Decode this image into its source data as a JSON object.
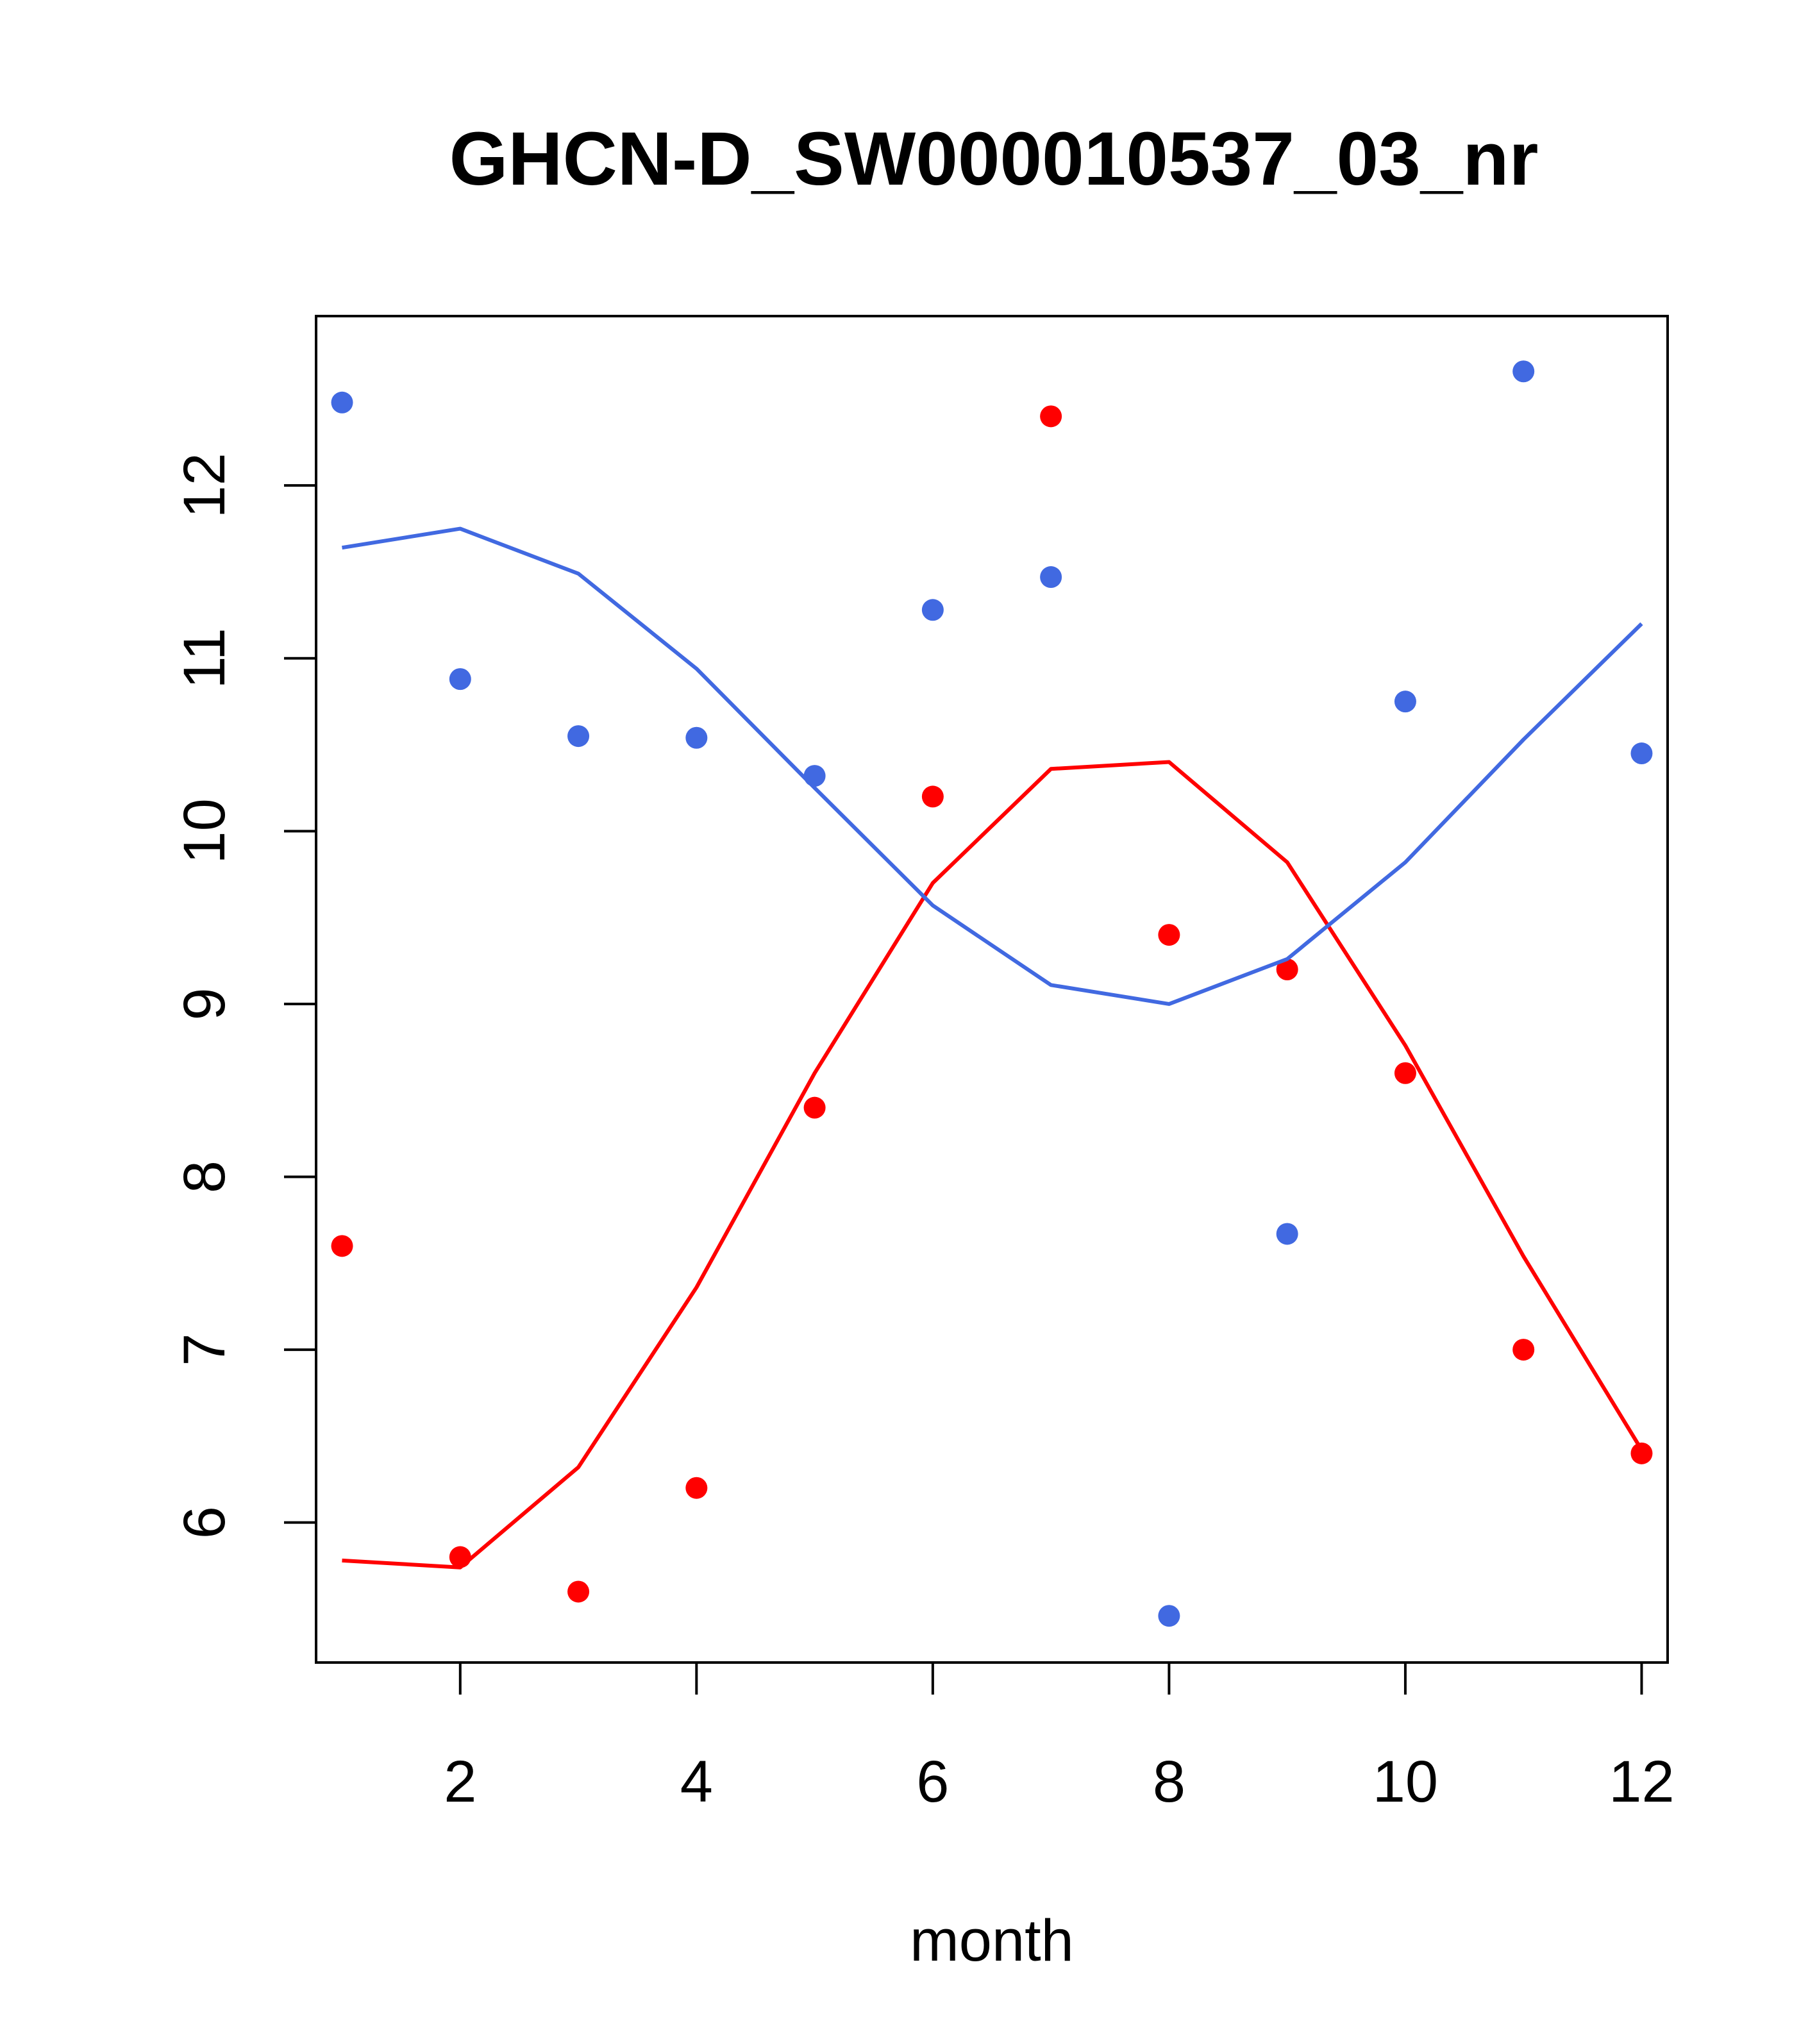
{
  "chart_data": {
    "type": "scatter",
    "title": "GHCN-D_SW000010537_03_nr",
    "xlabel": "month",
    "ylabel": "",
    "xlim": [
      0.78,
      12.22
    ],
    "ylim": [
      5.19,
      12.98
    ],
    "x_ticks": [
      2,
      4,
      6,
      8,
      10,
      12
    ],
    "y_ticks": [
      6,
      7,
      8,
      9,
      10,
      11,
      12
    ],
    "grid": false,
    "series": [
      {
        "color": "#ff0000",
        "points_x": [
          1,
          2,
          3,
          4,
          5,
          6,
          7,
          8,
          9,
          10,
          11,
          12
        ],
        "points_y": [
          7.6,
          5.8,
          5.6,
          6.2,
          8.4,
          10.2,
          12.4,
          9.4,
          9.2,
          8.6,
          7.0,
          6.4
        ],
        "line_x": [
          1,
          2,
          3,
          4,
          5,
          6,
          7,
          8,
          9,
          10,
          11,
          12
        ],
        "line_y": [
          5.78,
          5.74,
          6.32,
          7.36,
          8.6,
          9.7,
          10.36,
          10.4,
          9.82,
          8.76,
          7.54,
          6.42
        ]
      },
      {
        "color": "#4169e1",
        "points_x": [
          1,
          2,
          3,
          4,
          5,
          6,
          7,
          8,
          9,
          10,
          11,
          12
        ],
        "points_y": [
          12.48,
          10.88,
          10.55,
          10.54,
          10.32,
          11.28,
          11.47,
          5.46,
          7.67,
          10.75,
          12.66,
          10.45
        ],
        "line_x": [
          1,
          2,
          3,
          4,
          5,
          6,
          7,
          8,
          9,
          10,
          11,
          12
        ],
        "line_y": [
          11.64,
          11.75,
          11.49,
          10.94,
          10.25,
          9.57,
          9.11,
          9.0,
          9.26,
          9.82,
          10.53,
          11.2
        ]
      }
    ]
  }
}
